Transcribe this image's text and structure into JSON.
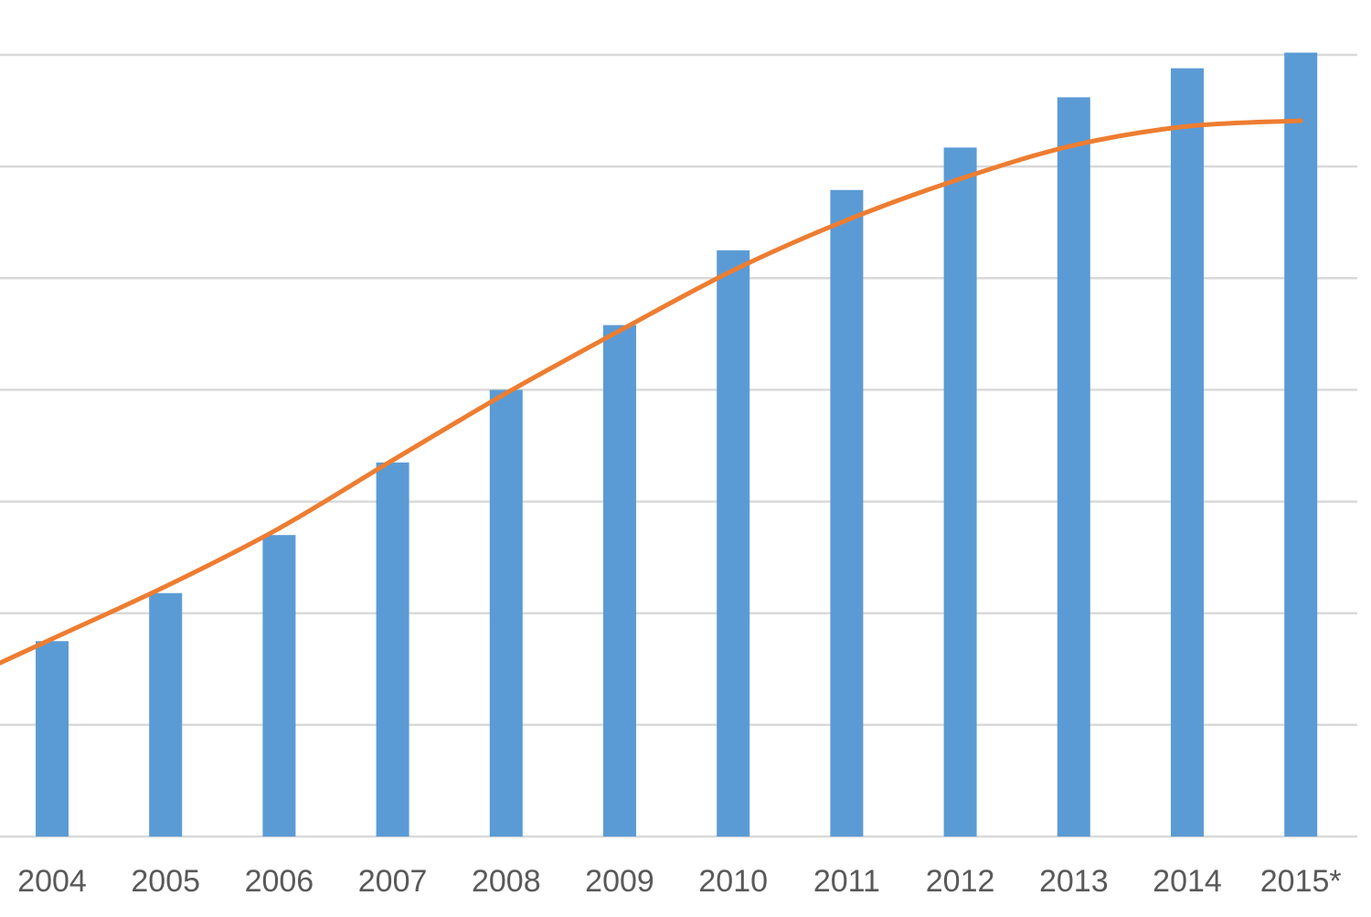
{
  "chart_data": {
    "type": "bar",
    "title": "",
    "xlabel": "",
    "ylabel": "",
    "categories": [
      "2004",
      "2005",
      "2006",
      "2007",
      "2008",
      "2009",
      "2010",
      "2011",
      "2012",
      "2013",
      "2014",
      "2015*"
    ],
    "series": [
      {
        "type": "bar",
        "values": [
          17.5,
          21.8,
          27.0,
          33.5,
          40.0,
          45.8,
          52.5,
          57.9,
          61.7,
          66.2,
          68.8,
          70.2
        ]
      },
      {
        "type": "line",
        "values": [
          17.7,
          22.4,
          27.6,
          33.7,
          39.7,
          45.3,
          50.7,
          55.2,
          58.9,
          61.9,
          63.6,
          64.1
        ]
      }
    ],
    "ylim": [
      0,
      70
    ],
    "gridlines": [
      0,
      10,
      20,
      30,
      40,
      50,
      60,
      70
    ],
    "grid": true,
    "legend": "none",
    "colors": {
      "bar": "#5b9bd5",
      "line": "#ed7d31",
      "grid": "#d9d9d9",
      "tick_text": "#595959"
    }
  }
}
